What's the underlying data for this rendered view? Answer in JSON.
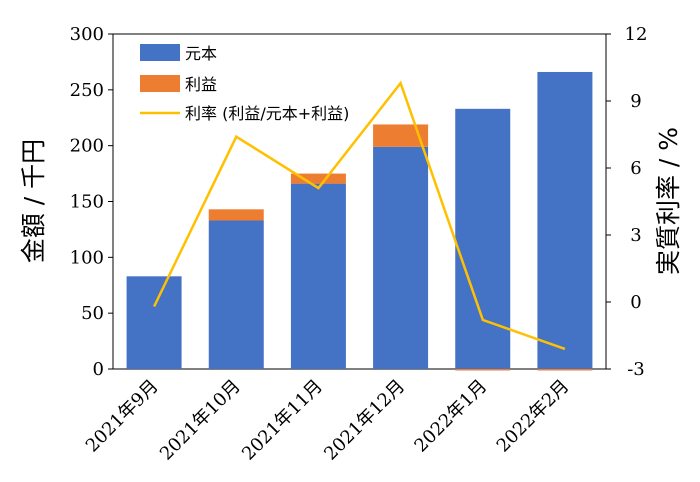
{
  "chart_data": {
    "type": "bar",
    "stacked": true,
    "categories": [
      "2021年9月",
      "2021年10月",
      "2021年11月",
      "2021年12月",
      "2022年1月",
      "2022年2月"
    ],
    "series": [
      {
        "name": "元本",
        "kind": "bar",
        "axis": "left",
        "color": "#4472c4",
        "values": [
          83,
          133,
          166,
          199,
          233,
          266
        ]
      },
      {
        "name": "利益",
        "kind": "bar",
        "axis": "left",
        "color": "#ed7d31",
        "values": [
          0,
          10,
          9,
          20,
          -1,
          -1
        ]
      },
      {
        "name": "利率 (利益/元本+利益)",
        "kind": "line",
        "axis": "right",
        "color": "#ffc000",
        "values": [
          -0.2,
          7.4,
          5.1,
          9.8,
          -0.8,
          -2.1
        ]
      }
    ],
    "y_left": {
      "label": "金額 / 千円",
      "lim": [
        0,
        300
      ],
      "ticks": [
        "0",
        "50",
        "100",
        "150",
        "200",
        "250",
        "300"
      ],
      "tick_values": [
        0,
        50,
        100,
        150,
        200,
        250,
        300
      ]
    },
    "y_right": {
      "label": "実質利率 / %",
      "lim": [
        -3,
        12
      ],
      "ticks": [
        "-3",
        "0",
        "3",
        "6",
        "9",
        "12"
      ],
      "tick_values": [
        -3,
        0,
        3,
        6,
        9,
        12
      ]
    },
    "grid": false,
    "legend_position": "top-left"
  }
}
